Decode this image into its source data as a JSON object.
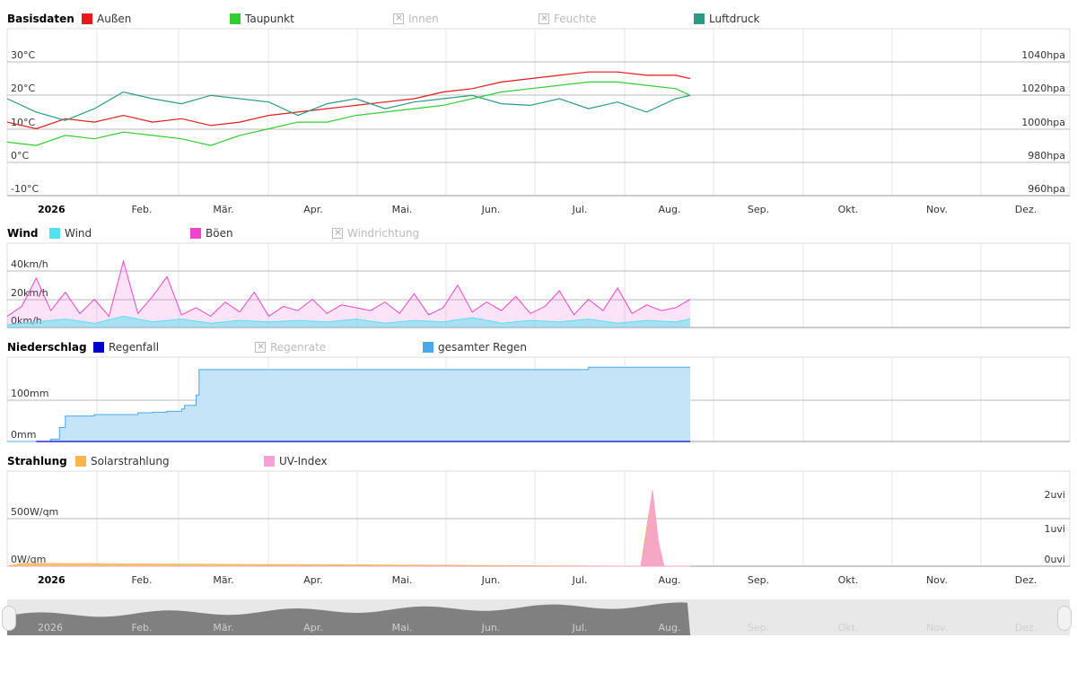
{
  "chart_data": [
    {
      "type": "line",
      "title": "Basisdaten",
      "legend": [
        {
          "name": "Außen",
          "color": "#e3191c",
          "enabled": true
        },
        {
          "name": "Taupunkt",
          "color": "#33cc33",
          "enabled": true
        },
        {
          "name": "Innen",
          "color": "#bbbbbb",
          "enabled": false
        },
        {
          "name": "Feuchte",
          "color": "#bbbbbb",
          "enabled": false
        },
        {
          "name": "Luftdruck",
          "color": "#2a9a87",
          "enabled": true
        }
      ],
      "y_left": {
        "ticks": [
          "30°C",
          "20°C",
          "10°C",
          "0°C",
          "-10°C"
        ],
        "range": [
          -10,
          30
        ]
      },
      "y_right": {
        "ticks": [
          "1040hpa",
          "1020hpa",
          "1000hpa",
          "980hpa",
          "960hpa"
        ],
        "range": [
          960,
          1040
        ]
      },
      "series": [
        {
          "name": "Außen",
          "color": "#e3191c",
          "x": [
            0,
            10,
            20,
            30,
            40,
            50,
            60,
            70,
            80,
            90,
            100,
            110,
            120,
            130,
            140,
            150,
            160,
            170,
            180,
            190,
            200,
            210,
            220,
            230,
            235
          ],
          "y": [
            12,
            10,
            13,
            12,
            14,
            12,
            13,
            11,
            12,
            14,
            15,
            16,
            17,
            18,
            19,
            21,
            22,
            24,
            25,
            26,
            27,
            27,
            26,
            26,
            25
          ]
        },
        {
          "name": "Taupunkt",
          "color": "#33cc33",
          "x": [
            0,
            10,
            20,
            30,
            40,
            50,
            60,
            70,
            80,
            90,
            100,
            110,
            120,
            130,
            140,
            150,
            160,
            170,
            180,
            190,
            200,
            210,
            220,
            230,
            235
          ],
          "y": [
            6,
            5,
            8,
            7,
            9,
            8,
            7,
            5,
            8,
            10,
            12,
            12,
            14,
            15,
            16,
            17,
            19,
            21,
            22,
            23,
            24,
            24,
            23,
            22,
            20
          ]
        },
        {
          "name": "Luftdruck",
          "color": "#2a9a87",
          "x": [
            0,
            10,
            20,
            30,
            40,
            50,
            60,
            70,
            80,
            90,
            100,
            110,
            120,
            130,
            140,
            150,
            160,
            170,
            180,
            190,
            200,
            210,
            220,
            230,
            235
          ],
          "y": [
            1018,
            1010,
            1005,
            1012,
            1022,
            1018,
            1015,
            1020,
            1018,
            1016,
            1008,
            1015,
            1018,
            1012,
            1016,
            1018,
            1020,
            1015,
            1014,
            1018,
            1012,
            1016,
            1010,
            1018,
            1020
          ]
        }
      ]
    },
    {
      "type": "area",
      "title": "Wind",
      "legend": [
        {
          "name": "Wind",
          "color": "#55e0f0",
          "enabled": true
        },
        {
          "name": "Böen",
          "color": "#ee44cc",
          "enabled": true
        },
        {
          "name": "Windrichtung",
          "color": "#bbbbbb",
          "enabled": false
        }
      ],
      "y_left": {
        "ticks": [
          "40km/h",
          "20km/h",
          "0km/h"
        ],
        "range": [
          0,
          40
        ]
      },
      "series": [
        {
          "name": "Böen",
          "color": "#ee44cc",
          "x": [
            0,
            5,
            10,
            15,
            20,
            25,
            30,
            35,
            40,
            45,
            50,
            55,
            60,
            65,
            70,
            75,
            80,
            85,
            90,
            95,
            100,
            105,
            110,
            115,
            120,
            125,
            130,
            135,
            140,
            145,
            150,
            155,
            160,
            165,
            170,
            175,
            180,
            185,
            190,
            195,
            200,
            205,
            210,
            215,
            220,
            225,
            230,
            235
          ],
          "y": [
            8,
            15,
            35,
            12,
            25,
            10,
            20,
            8,
            47,
            10,
            22,
            36,
            9,
            14,
            8,
            18,
            11,
            25,
            8,
            15,
            12,
            20,
            10,
            16,
            14,
            12,
            18,
            10,
            24,
            9,
            14,
            30,
            11,
            18,
            12,
            22,
            10,
            15,
            26,
            9,
            20,
            12,
            28,
            10,
            16,
            12,
            14,
            20
          ]
        },
        {
          "name": "Wind",
          "color": "#55e0f0",
          "x": [
            0,
            10,
            20,
            30,
            40,
            50,
            60,
            70,
            80,
            90,
            100,
            110,
            120,
            130,
            140,
            150,
            160,
            170,
            180,
            190,
            200,
            210,
            220,
            230,
            235
          ],
          "y": [
            2,
            4,
            6,
            3,
            8,
            4,
            6,
            3,
            5,
            4,
            5,
            4,
            6,
            3,
            5,
            4,
            7,
            3,
            5,
            4,
            6,
            3,
            5,
            4,
            6
          ]
        }
      ]
    },
    {
      "type": "area",
      "title": "Niederschlag",
      "legend": [
        {
          "name": "Regenfall",
          "color": "#0000cc",
          "enabled": true
        },
        {
          "name": "Regenrate",
          "color": "#bbbbbb",
          "enabled": false
        },
        {
          "name": "gesamter Regen",
          "color": "#4aa8e8",
          "enabled": true
        }
      ],
      "y_left": {
        "ticks": [
          "100mm",
          "0mm"
        ],
        "range": [
          0,
          180
        ]
      },
      "series": [
        {
          "name": "gesamter Regen",
          "color": "#4aa8e8",
          "x": [
            0,
            10,
            15,
            18,
            20,
            30,
            45,
            50,
            55,
            60,
            61,
            65,
            66,
            200,
            205,
            235
          ],
          "y": [
            0,
            0,
            5,
            30,
            55,
            58,
            62,
            63,
            65,
            70,
            78,
            100,
            155,
            160,
            160,
            160
          ]
        }
      ]
    },
    {
      "type": "area",
      "title": "Strahlung",
      "legend": [
        {
          "name": "Solarstrahlung",
          "color": "#f5b54a",
          "enabled": true
        },
        {
          "name": "UV-Index",
          "color": "#f5a0d8",
          "enabled": true
        }
      ],
      "y_left": {
        "ticks": [
          "500W/qm",
          "0W/qm"
        ],
        "range": [
          0,
          1000
        ]
      },
      "y_right": {
        "ticks": [
          "2uvi",
          "1uvi",
          "0uvi"
        ],
        "range": [
          0,
          3
        ]
      },
      "series": [
        {
          "name": "Solarstrahlung",
          "color": "#f5b54a",
          "x": [
            0,
            5,
            218,
            220,
            222,
            224,
            226,
            235
          ],
          "y": [
            0,
            30,
            0,
            400,
            780,
            200,
            0,
            0
          ]
        },
        {
          "name": "UV-Index",
          "color": "#f5a0d8",
          "x": [
            0,
            218,
            220,
            222,
            224,
            226,
            235
          ],
          "y": [
            0,
            0,
            1.0,
            2.4,
            0.8,
            0,
            0
          ]
        }
      ]
    }
  ],
  "x_axis": {
    "year": "2026",
    "months": [
      "Feb.",
      "Mär.",
      "Apr.",
      "Mai.",
      "Jun.",
      "Jul.",
      "Aug.",
      "Sep.",
      "Okt.",
      "Nov.",
      "Dez."
    ]
  }
}
